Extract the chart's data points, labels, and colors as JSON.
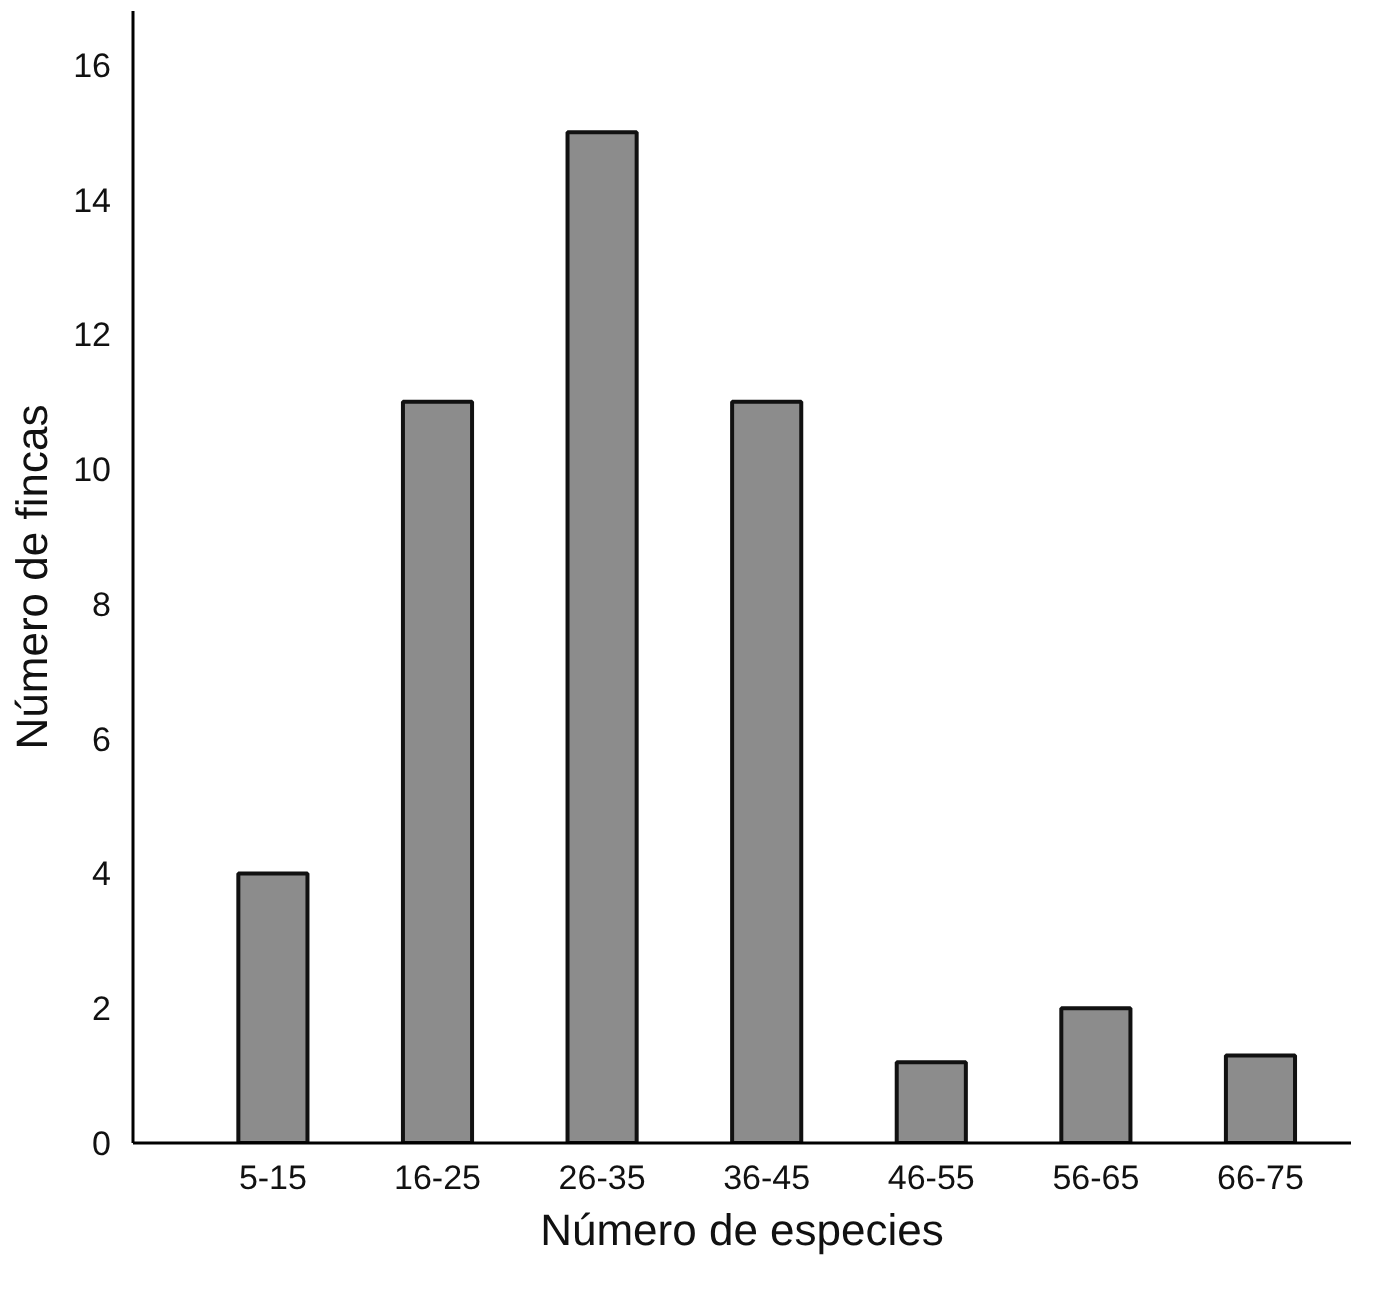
{
  "chart_data": {
    "type": "bar",
    "xlabel": "Número de especies",
    "ylabel": "Número de fincas",
    "categories": [
      "5-15",
      "16-25",
      "26-35",
      "36-45",
      "46-55",
      "56-65",
      "66-75"
    ],
    "values": [
      4,
      11,
      15,
      11,
      1.2,
      2,
      1.3
    ],
    "color": "#8c8c8c",
    "ylim": [
      0,
      16.8
    ],
    "yticks": [
      0,
      2,
      4,
      6,
      8,
      10,
      12,
      14,
      16
    ],
    "grid": false
  }
}
